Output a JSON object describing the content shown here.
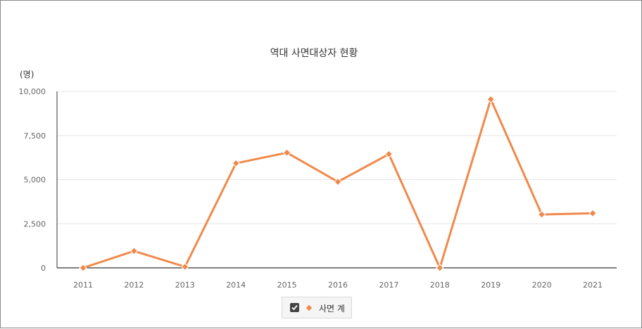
{
  "chart_data": {
    "type": "line",
    "title": "역대 사면대상자 현황",
    "unit_label": "(명)",
    "categories": [
      "2011",
      "2012",
      "2013",
      "2014",
      "2015",
      "2016",
      "2017",
      "2018",
      "2019",
      "2020",
      "2021"
    ],
    "series": [
      {
        "name": "사면 계",
        "values": [
          0,
          955,
          60,
          5925,
          6527,
          4876,
          6444,
          0,
          9551,
          3024,
          3094
        ],
        "color": "#f0894a",
        "marker": "diamond"
      }
    ],
    "ylim": [
      0,
      10000
    ],
    "yticks": [
      0,
      2500,
      5000,
      7500,
      10000
    ],
    "ytick_labels": [
      "0",
      "2,500",
      "5,000",
      "7,500",
      "10,000"
    ],
    "grid": true,
    "legend_position": "bottom-center",
    "legend_checked": true
  }
}
